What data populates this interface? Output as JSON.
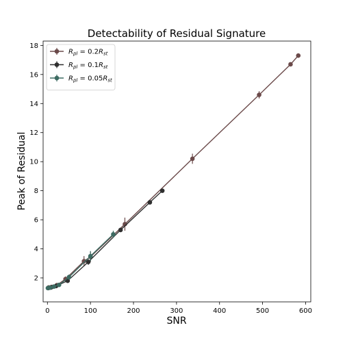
{
  "chart_data": {
    "type": "line",
    "title": "Detectability of Residual Signature",
    "xlabel": "SNR",
    "ylabel": "Peak of Residual",
    "xlim": [
      -10,
      612
    ],
    "ylim": [
      0.35,
      18.3
    ],
    "xticks": [
      0,
      100,
      200,
      300,
      400,
      500,
      600
    ],
    "yticks": [
      2,
      4,
      6,
      8,
      10,
      12,
      14,
      16,
      18
    ],
    "grid": false,
    "legend": "top-left",
    "series": [
      {
        "name": "R_pl = 0.2R_st",
        "legend": {
          "base": "R",
          "sub1": "pl",
          "mid": " = 0.2",
          "sym": "R",
          "sub2": "st"
        },
        "color": "#6b4a4a",
        "marker": "o",
        "x": [
          3,
          10,
          22,
          42,
          85,
          100,
          180,
          337,
          492,
          565,
          583
        ],
        "y": [
          1.34,
          1.38,
          1.5,
          1.92,
          3.15,
          3.45,
          5.7,
          10.2,
          14.6,
          16.7,
          17.3
        ],
        "yerr": [
          0.05,
          0.06,
          0.08,
          0.18,
          0.35,
          0.35,
          0.45,
          0.35,
          0.25,
          0.08,
          0.05
        ]
      },
      {
        "name": "R_pl = 0.1R_st",
        "legend": {
          "base": "R",
          "sub1": "pl",
          "mid": " = 0.1",
          "sym": "R",
          "sub2": "st"
        },
        "color": "#2f2f2f",
        "marker": "o",
        "x": [
          2,
          8,
          20,
          47,
          95,
          170,
          238,
          267
        ],
        "y": [
          1.3,
          1.34,
          1.44,
          1.8,
          3.1,
          5.3,
          7.2,
          8.0
        ],
        "yerr": [
          0.05,
          0.05,
          0.07,
          0.12,
          0.2,
          0.15,
          0.1,
          0.08
        ]
      },
      {
        "name": "R_pl = 0.05R_st",
        "legend": {
          "base": "R",
          "sub1": "pl",
          "mid": " = 0.05",
          "sym": "R",
          "sub2": "st"
        },
        "color": "#3d6b62",
        "marker": "o",
        "x": [
          1,
          6,
          15,
          27,
          50,
          100,
          153
        ],
        "y": [
          1.3,
          1.33,
          1.4,
          1.52,
          2.05,
          3.5,
          5.0
        ],
        "yerr": [
          0.06,
          0.07,
          0.1,
          0.12,
          0.18,
          0.35,
          0.25
        ]
      }
    ]
  }
}
